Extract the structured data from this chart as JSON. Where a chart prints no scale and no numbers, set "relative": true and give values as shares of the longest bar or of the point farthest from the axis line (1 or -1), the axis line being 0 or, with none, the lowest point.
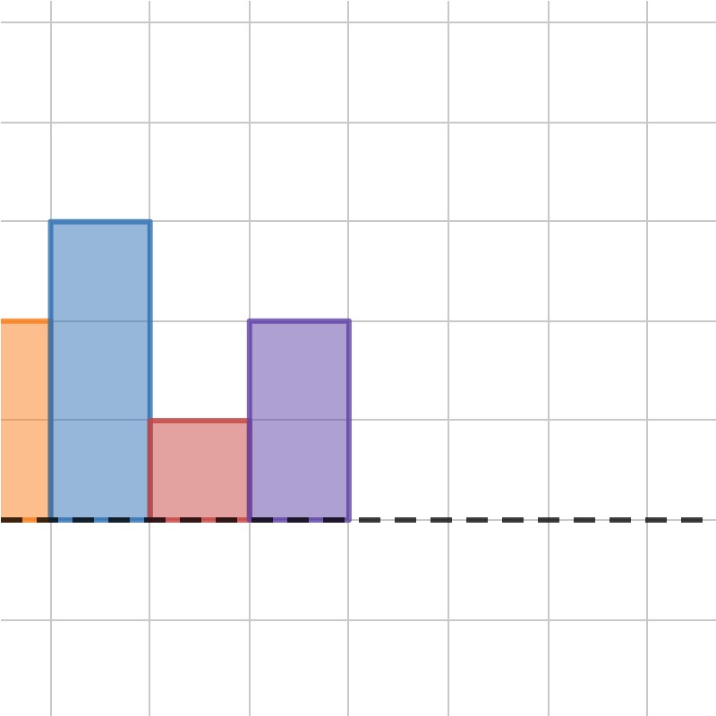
{
  "chart_data": {
    "type": "bar",
    "relative": true,
    "categories": [
      null,
      null,
      null,
      null
    ],
    "values": [
      0.667,
      1,
      0.333,
      0.667
    ],
    "colors": [
      "#fa7e19",
      "#2d70b3",
      "#c74440",
      "#6042a6"
    ],
    "grid": true
  }
}
